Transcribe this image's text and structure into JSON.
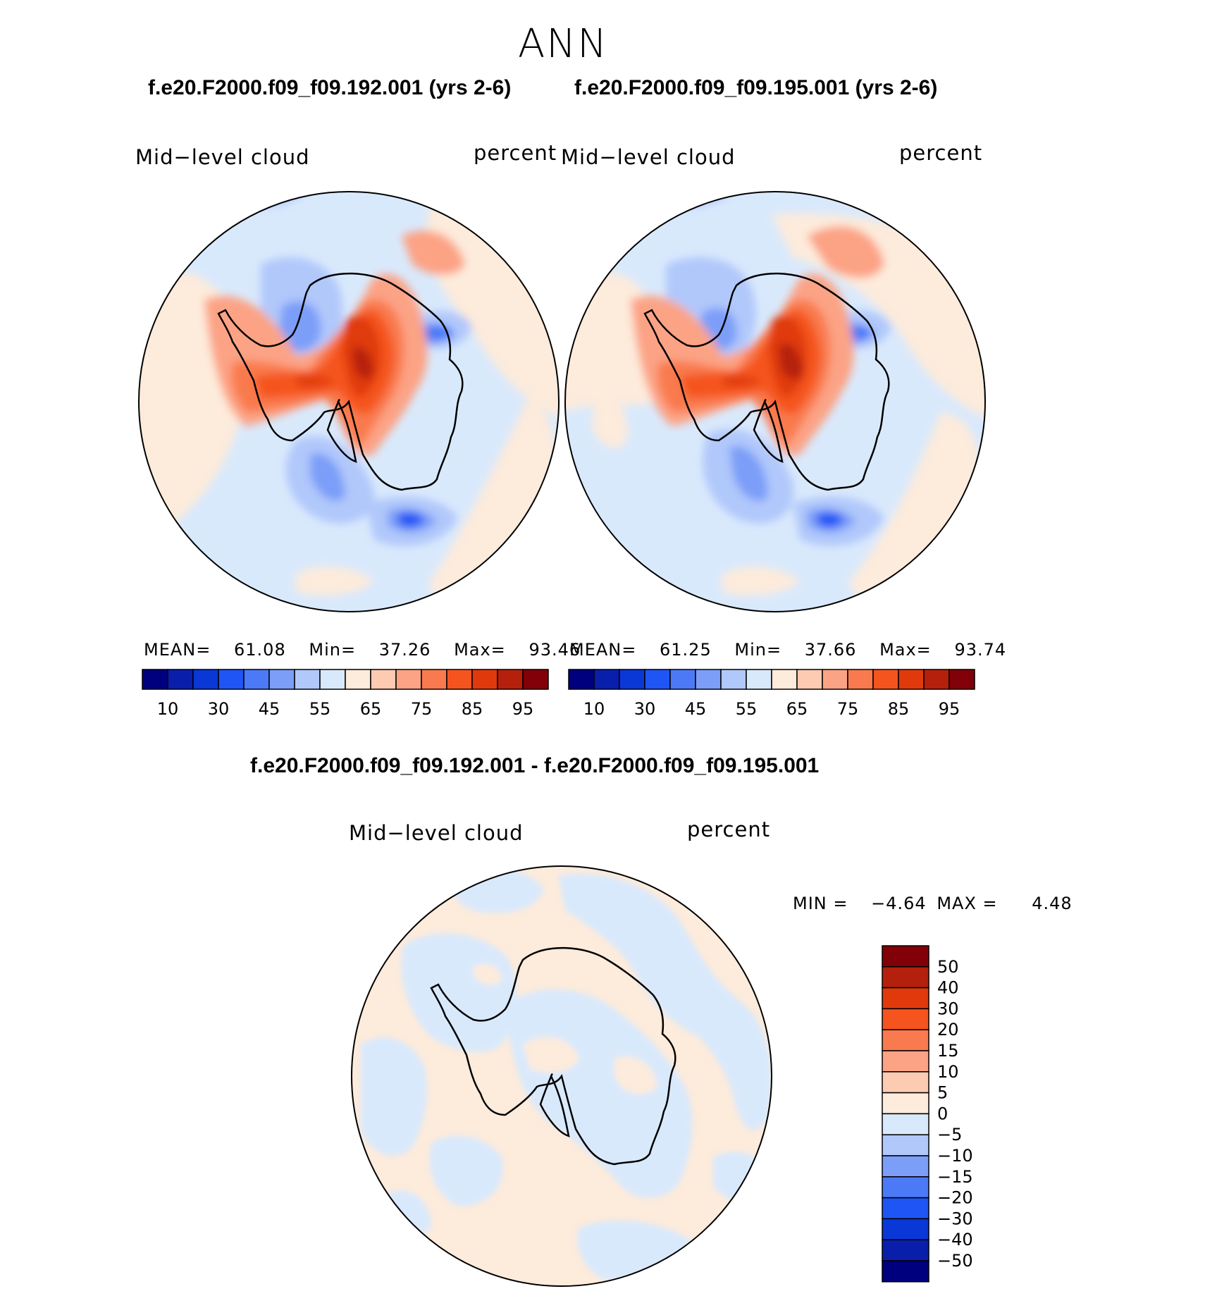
{
  "season": "ANN",
  "panel_left": {
    "case_title": "f.e20.F2000.f09_f09.192.001 (yrs 2-6)",
    "variable": "Mid−level cloud",
    "units": "percent",
    "mean_label": "MEAN=",
    "mean": "61.08",
    "min_label": "Min=",
    "min": "37.26",
    "max_label": "Max=",
    "max": "93.46"
  },
  "panel_right": {
    "case_title": "f.e20.F2000.f09_f09.195.001 (yrs 2-6)",
    "variable": "Mid−level cloud",
    "units": "percent",
    "mean_label": "MEAN=",
    "mean": "61.25",
    "min_label": "Min=",
    "min": "37.66",
    "max_label": "Max=",
    "max": "93.74"
  },
  "panel_diff": {
    "case_title": "f.e20.F2000.f09_f09.192.001 - f.e20.F2000.f09_f09.195.001",
    "variable": "Mid−level cloud",
    "units": "percent",
    "min_label": "MIN =",
    "min": "−4.64",
    "max_label": "MAX =",
    "max": "4.48"
  },
  "colorbar_abs": {
    "colors": [
      "#00007f",
      "#0a1eac",
      "#0a38d6",
      "#1f55f5",
      "#4c7af7",
      "#7c9ef8",
      "#b1c8fb",
      "#d9e9fc",
      "#fdebdb",
      "#fdcbb1",
      "#fca385",
      "#f97a4e",
      "#f5541e",
      "#e03a0c",
      "#b5200c",
      "#820007"
    ],
    "labels": [
      "10",
      "30",
      "45",
      "55",
      "65",
      "75",
      "85",
      "95"
    ]
  },
  "colorbar_diff": {
    "colors": [
      "#820007",
      "#b5200c",
      "#e03a0c",
      "#f5541e",
      "#f97a4e",
      "#fca385",
      "#fdcbb1",
      "#fdebdb",
      "#d9e9fc",
      "#b1c8fb",
      "#7c9ef8",
      "#4c7af7",
      "#1f55f5",
      "#0a38d6",
      "#0a1eac",
      "#00007f"
    ],
    "labels": [
      "50",
      "40",
      "30",
      "20",
      "15",
      "10",
      "5",
      "0",
      "−5",
      "−10",
      "−15",
      "−20",
      "−30",
      "−40",
      "−50"
    ]
  }
}
